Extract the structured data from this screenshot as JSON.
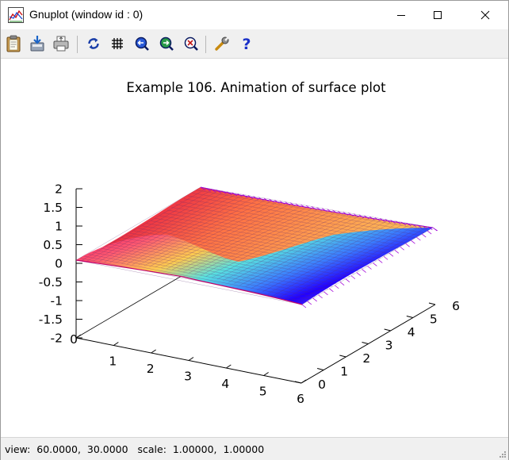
{
  "window": {
    "title": "Gnuplot (window id : 0)"
  },
  "toolbar": {
    "buttons": [
      {
        "name": "copy-to-clipboard-button",
        "icon": "clipboard-icon"
      },
      {
        "name": "export-button",
        "icon": "export-icon"
      },
      {
        "name": "print-button",
        "icon": "printer-icon"
      },
      {
        "name": "replot-button",
        "icon": "refresh-icon"
      },
      {
        "name": "grid-button",
        "icon": "grid-icon"
      },
      {
        "name": "zoom-previous-button",
        "icon": "zoom-previous-icon"
      },
      {
        "name": "zoom-next-button",
        "icon": "zoom-next-icon"
      },
      {
        "name": "unzoom-button",
        "icon": "unzoom-icon"
      },
      {
        "name": "options-button",
        "icon": "wrench-icon"
      },
      {
        "name": "help-button",
        "icon": "help-icon"
      }
    ]
  },
  "plot": {
    "title": "Example 106. Animation of surface plot",
    "z_ticks": [
      "2",
      "1.5",
      "1",
      "0.5",
      "0",
      "-0.5",
      "-1",
      "-1.5",
      "-2"
    ],
    "x_ticks": [
      "0",
      "1",
      "2",
      "3",
      "4",
      "5",
      "6"
    ],
    "y_ticks": [
      "0",
      "1",
      "2",
      "3",
      "4",
      "5",
      "6"
    ]
  },
  "chart_data": {
    "type": "surface",
    "title": "Example 106. Animation of surface plot",
    "xrange": [
      0,
      6
    ],
    "yrange": [
      0,
      6
    ],
    "zrange": [
      -2,
      2
    ],
    "z_ticks": [
      2,
      1.5,
      1,
      0.5,
      0,
      -0.5,
      -1,
      -1.5,
      -2
    ],
    "x_ticks": [
      0,
      1,
      2,
      3,
      4,
      5,
      6
    ],
    "y_ticks": [
      0,
      1,
      2,
      3,
      4,
      5,
      6
    ],
    "view": [
      60,
      30
    ],
    "palette_colors": [
      "#1a00ff",
      "#3aa0ff",
      "#60e0e0",
      "#ffc040",
      "#ff6060",
      "#e8005a"
    ]
  },
  "statusbar": {
    "text": "view:  60.0000,  30.0000   scale:  1.00000,  1.00000"
  }
}
